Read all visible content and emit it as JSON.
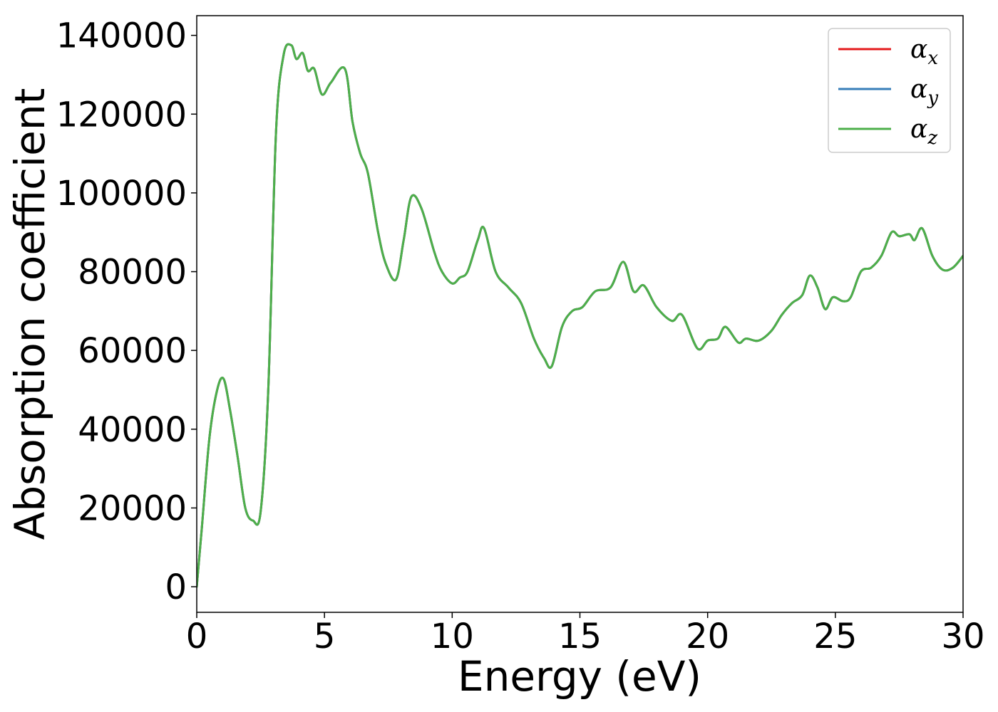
{
  "chart_data": {
    "type": "line",
    "title": "",
    "xlabel": "Energy (eV)",
    "ylabel": "Absorption coefficient",
    "xlim": [
      0,
      30
    ],
    "ylim": [
      -6500,
      145000
    ],
    "xticks": [
      0,
      5,
      10,
      15,
      20,
      25,
      30
    ],
    "yticks": [
      0,
      20000,
      40000,
      60000,
      80000,
      100000,
      120000,
      140000
    ],
    "xtick_labels": [
      "0",
      "5",
      "10",
      "15",
      "20",
      "25",
      "30"
    ],
    "ytick_labels": [
      "0",
      "20000",
      "40000",
      "60000",
      "80000",
      "100000",
      "120000",
      "140000"
    ],
    "grid": false,
    "legend_position": "top-right",
    "x": [
      0,
      0.2,
      0.5,
      0.8,
      1.05,
      1.3,
      1.6,
      1.9,
      2.2,
      2.5,
      2.8,
      3.1,
      3.4,
      3.7,
      3.9,
      4.15,
      4.35,
      4.6,
      4.9,
      5.25,
      5.8,
      6.1,
      6.4,
      6.7,
      7.1,
      7.4,
      7.8,
      8.1,
      8.4,
      8.8,
      9.3,
      9.6,
      10.0,
      10.3,
      10.6,
      11.0,
      11.25,
      11.7,
      12.2,
      12.7,
      13.2,
      13.6,
      13.9,
      14.3,
      14.7,
      15.1,
      15.6,
      16.2,
      16.7,
      17.1,
      17.5,
      18.0,
      18.6,
      19.0,
      19.6,
      20.0,
      20.4,
      20.7,
      21.2,
      21.5,
      22.0,
      22.5,
      22.9,
      23.3,
      23.7,
      24.0,
      24.3,
      24.6,
      24.9,
      25.3,
      25.6,
      26.0,
      26.4,
      26.8,
      27.2,
      27.5,
      27.9,
      28.1,
      28.4,
      28.8,
      29.2,
      29.6,
      30.0
    ],
    "series": [
      {
        "name": "α_x",
        "label_base": "α",
        "label_sub": "x",
        "color": "#e41a1c",
        "values": [
          0,
          15000,
          38000,
          50000,
          52800,
          45000,
          33000,
          20000,
          16800,
          19000,
          50000,
          115000,
          135000,
          137500,
          134000,
          135500,
          131000,
          131500,
          125000,
          128000,
          131500,
          118000,
          110000,
          105000,
          90000,
          82000,
          78000,
          88000,
          99000,
          96000,
          85000,
          80000,
          77000,
          78500,
          80000,
          88000,
          91000,
          80000,
          76000,
          72000,
          63000,
          58000,
          56000,
          66000,
          70000,
          71000,
          75000,
          76000,
          82500,
          75000,
          76500,
          71000,
          67500,
          69000,
          60500,
          62500,
          63000,
          66000,
          62000,
          63000,
          62500,
          65000,
          69000,
          72000,
          74000,
          79000,
          76000,
          70500,
          73500,
          72500,
          73500,
          80000,
          81000,
          84000,
          90000,
          89000,
          89500,
          88000,
          91000,
          84000,
          80500,
          81000,
          84000
        ]
      },
      {
        "name": "α_y",
        "label_base": "α",
        "label_sub": "y",
        "color": "#377eb8",
        "values": [
          0,
          15000,
          38000,
          50000,
          52800,
          45000,
          33000,
          20000,
          16800,
          19000,
          50000,
          115000,
          135000,
          137500,
          134000,
          135500,
          131000,
          131500,
          125000,
          128000,
          131500,
          118000,
          110000,
          105000,
          90000,
          82000,
          78000,
          88000,
          99000,
          96000,
          85000,
          80000,
          77000,
          78500,
          80000,
          88000,
          91000,
          80000,
          76000,
          72000,
          63000,
          58000,
          56000,
          66000,
          70000,
          71000,
          75000,
          76000,
          82500,
          75000,
          76500,
          71000,
          67500,
          69000,
          60500,
          62500,
          63000,
          66000,
          62000,
          63000,
          62500,
          65000,
          69000,
          72000,
          74000,
          79000,
          76000,
          70500,
          73500,
          72500,
          73500,
          80000,
          81000,
          84000,
          90000,
          89000,
          89500,
          88000,
          91000,
          84000,
          80500,
          81000,
          84000
        ]
      },
      {
        "name": "α_z",
        "label_base": "α",
        "label_sub": "z",
        "color": "#4daf4a",
        "values": [
          0,
          15000,
          38000,
          50000,
          52800,
          45000,
          33000,
          20000,
          16800,
          19000,
          50000,
          115000,
          135000,
          137500,
          134000,
          135500,
          131000,
          131500,
          125000,
          128000,
          131500,
          118000,
          110000,
          105000,
          90000,
          82000,
          78000,
          88000,
          99000,
          96000,
          85000,
          80000,
          77000,
          78500,
          80000,
          88000,
          91000,
          80000,
          76000,
          72000,
          63000,
          58000,
          56000,
          66000,
          70000,
          71000,
          75000,
          76000,
          82500,
          75000,
          76500,
          71000,
          67500,
          69000,
          60500,
          62500,
          63000,
          66000,
          62000,
          63000,
          62500,
          65000,
          69000,
          72000,
          74000,
          79000,
          76000,
          70500,
          73500,
          72500,
          73500,
          80000,
          81000,
          84000,
          90000,
          89000,
          89500,
          88000,
          91000,
          84000,
          80500,
          81000,
          84000
        ]
      }
    ]
  }
}
